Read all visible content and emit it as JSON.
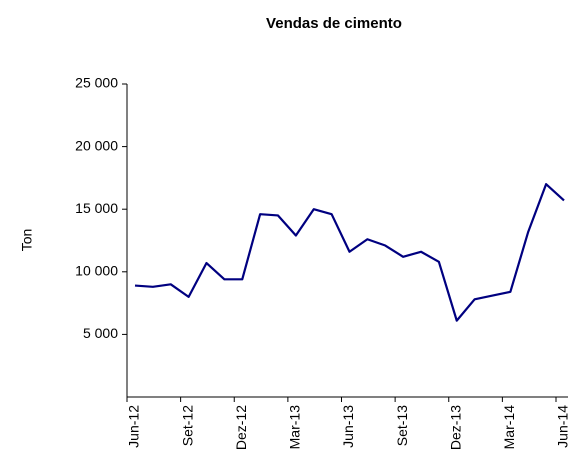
{
  "chart_data": {
    "type": "line",
    "title": "Vendas de cimento",
    "y_label": "Ton",
    "categories": [
      "Jun-12",
      null,
      null,
      "Set-12",
      null,
      null,
      "Dez-12",
      null,
      null,
      "Mar-13",
      null,
      null,
      "Jun-13",
      null,
      null,
      "Set-13",
      null,
      null,
      "Dez-13",
      null,
      null,
      "Mar-14",
      null,
      null,
      "Jun-14"
    ],
    "series": [
      {
        "name": "Vendas",
        "color": "#000080",
        "values": [
          8900,
          8800,
          9000,
          8000,
          10700,
          9400,
          9400,
          14600,
          14500,
          12900,
          15000,
          14600,
          11600,
          12600,
          12100,
          11200,
          11600,
          10800,
          6100,
          7800,
          8100,
          8400,
          13200,
          17000,
          15700
        ]
      }
    ],
    "ylim": [
      0,
      25000
    ],
    "yticks": [
      {
        "value": 5000,
        "label": "5 000"
      },
      {
        "value": 10000,
        "label": "10 000"
      },
      {
        "value": 15000,
        "label": "15 000"
      },
      {
        "value": 20000,
        "label": "20 000"
      },
      {
        "value": 25000,
        "label": "25 000"
      }
    ],
    "grid": false
  }
}
